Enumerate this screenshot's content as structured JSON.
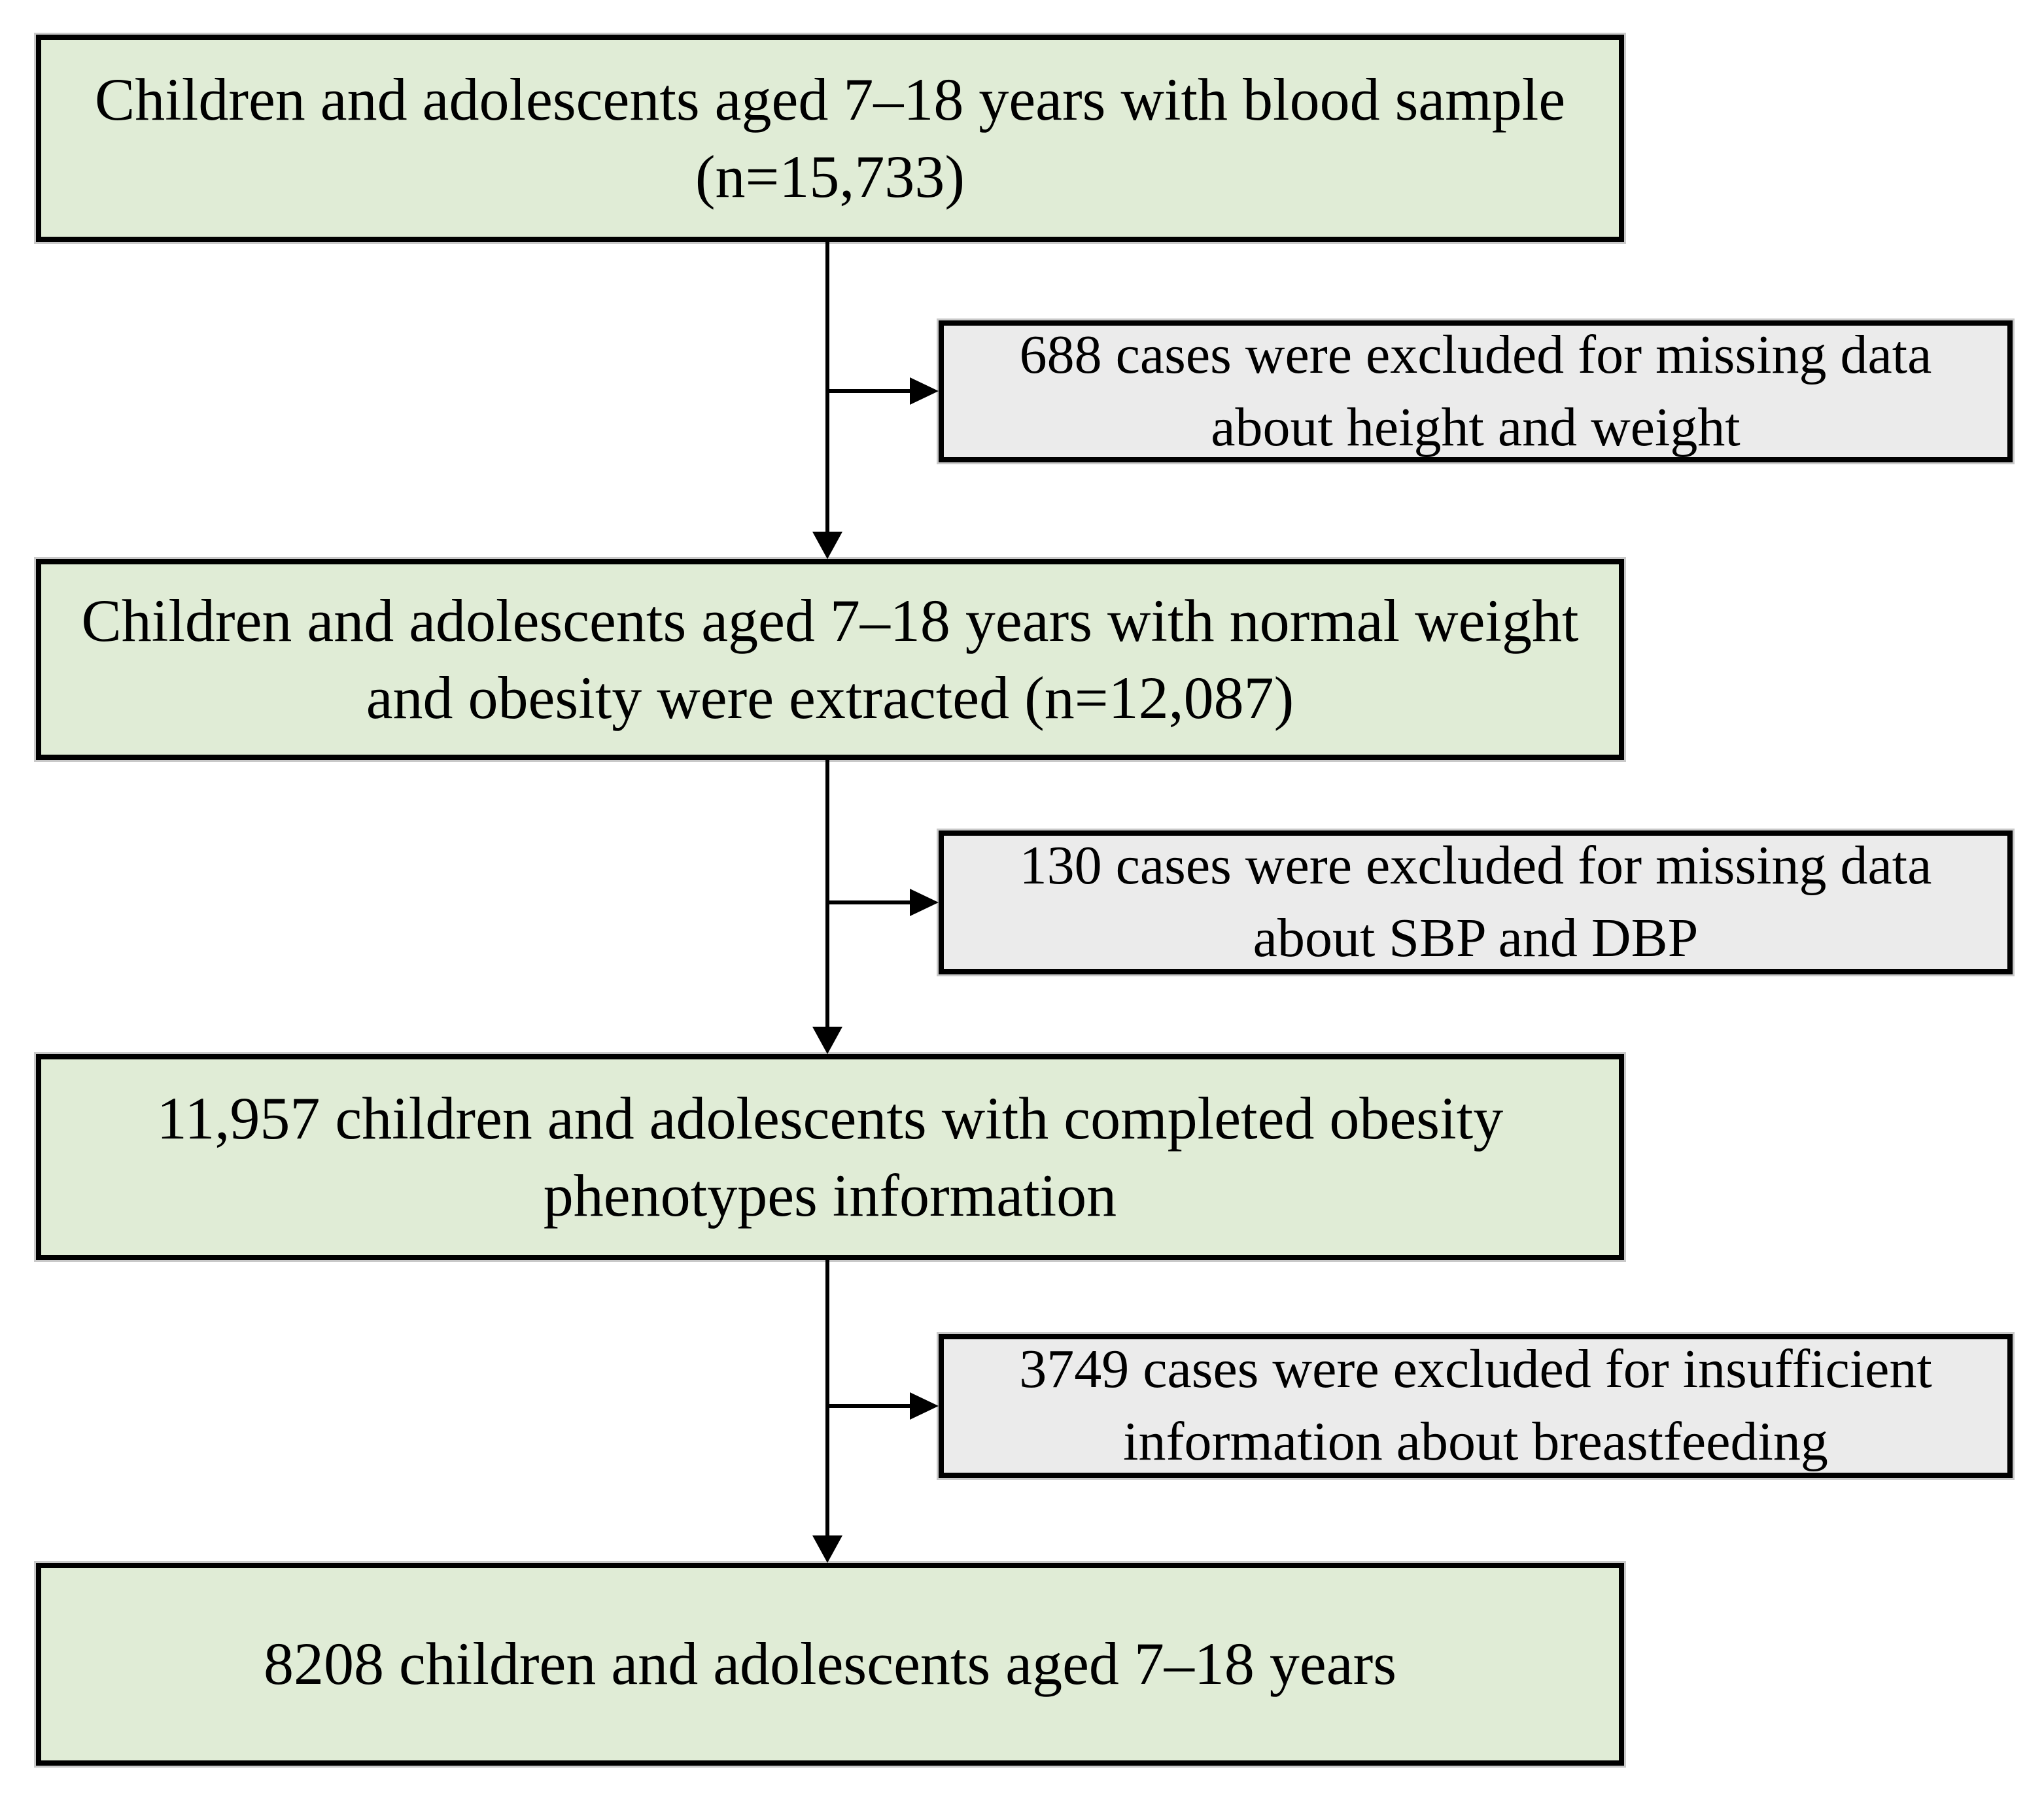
{
  "diagram": {
    "type": "flowchart",
    "colors": {
      "flow_box_fill": "#e0ecd6",
      "exclusion_box_fill": "#ebebeb",
      "border": "#000000",
      "arrow": "#000000"
    },
    "flow_boxes": [
      {
        "n": "15,733",
        "lines": [
          "Children and adolescents aged 7–18 years with blood sample",
          "(n=15,733)"
        ]
      },
      {
        "n": "12,087",
        "lines": [
          "Children and adolescents aged 7–18 years with normal weight",
          "and obesity were extracted (n=12,087)"
        ]
      },
      {
        "n": "11,957",
        "lines": [
          "11,957 children and adolescents with completed obesity",
          "phenotypes information"
        ]
      },
      {
        "n": "8208",
        "lines": [
          "8208 children and adolescents aged 7–18 years"
        ]
      }
    ],
    "exclusion_boxes": [
      {
        "n": "688",
        "lines": [
          "688 cases were excluded for missing data",
          "about height and weight"
        ]
      },
      {
        "n": "130",
        "lines": [
          "130 cases were excluded for missing data",
          "about SBP and DBP"
        ]
      },
      {
        "n": "3749",
        "lines": [
          "3749 cases were excluded for insufficient",
          "information about breastfeeding"
        ]
      }
    ]
  }
}
